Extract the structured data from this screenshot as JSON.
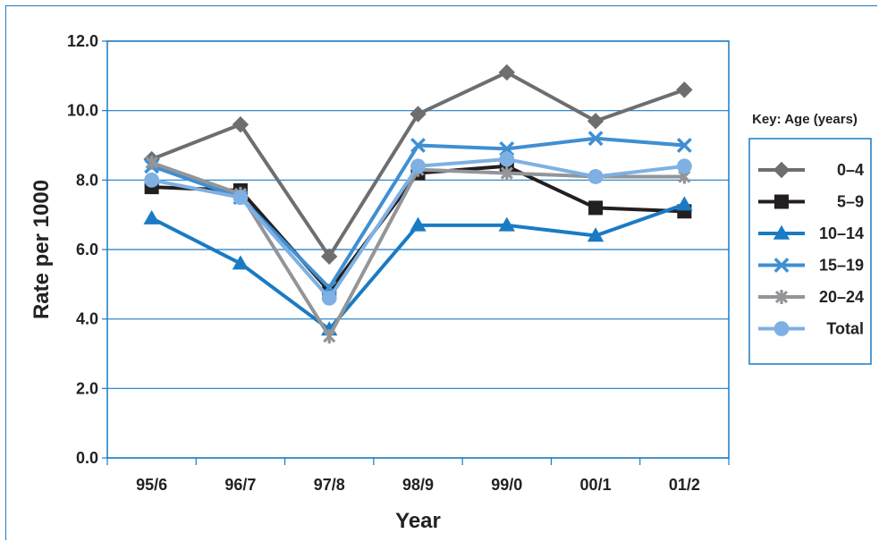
{
  "chart_data": {
    "type": "line",
    "xlabel": "Year",
    "ylabel": "Rate per 1000",
    "categories": [
      "95/6",
      "96/7",
      "97/8",
      "98/9",
      "99/0",
      "00/1",
      "01/2"
    ],
    "ylim": [
      0,
      12
    ],
    "yticks": [
      "0.0",
      "2.0",
      "4.0",
      "6.0",
      "8.0",
      "10.0",
      "12.0"
    ],
    "grid": true,
    "legend": {
      "title": "Key: Age (years)",
      "placement": "right"
    },
    "series": [
      {
        "name": "0–4",
        "color": "#6d6e70",
        "marker": "diamond",
        "values": [
          8.6,
          9.6,
          5.8,
          9.9,
          11.1,
          9.7,
          10.6
        ]
      },
      {
        "name": "5–9",
        "color": "#231f20",
        "marker": "square",
        "values": [
          7.8,
          7.7,
          4.8,
          8.2,
          8.4,
          7.2,
          7.1
        ]
      },
      {
        "name": "10–14",
        "color": "#1a7bc4",
        "marker": "triangle",
        "values": [
          6.9,
          5.6,
          3.7,
          6.7,
          6.7,
          6.4,
          7.3
        ]
      },
      {
        "name": "15–19",
        "color": "#3f8fd2",
        "marker": "x",
        "values": [
          8.4,
          7.5,
          4.9,
          9.0,
          8.9,
          9.2,
          9.0
        ]
      },
      {
        "name": "20–24",
        "color": "#939598",
        "marker": "asterisk",
        "values": [
          8.5,
          7.6,
          3.5,
          8.3,
          8.2,
          8.1,
          8.1
        ]
      },
      {
        "name": "Total",
        "color": "#7fb0e3",
        "marker": "circle",
        "values": [
          8.0,
          7.5,
          4.6,
          8.4,
          8.6,
          8.1,
          8.4
        ]
      }
    ]
  }
}
